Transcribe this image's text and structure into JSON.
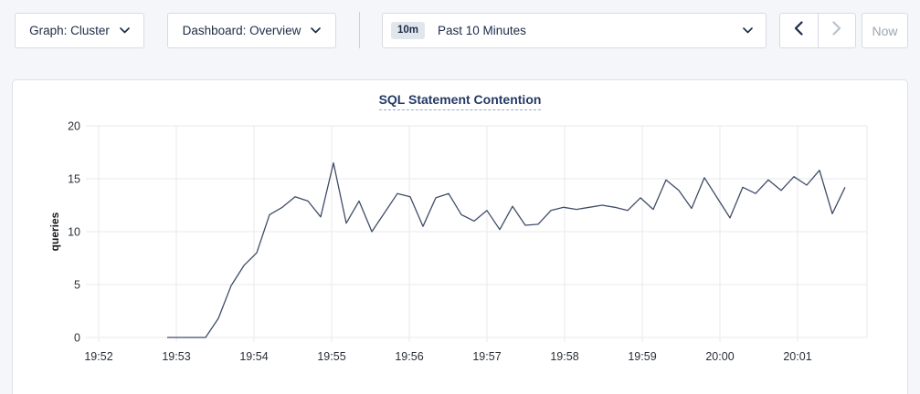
{
  "toolbar": {
    "graph_dropdown": {
      "label": "Graph: Cluster"
    },
    "dashboard_dropdown": {
      "label": "Dashboard: Overview"
    },
    "time_picker": {
      "badge": "10m",
      "label": "Past 10 Minutes"
    },
    "now_button": {
      "label": "Now"
    }
  },
  "chart": {
    "title": "SQL Statement Contention",
    "ylabel": "queries"
  },
  "chart_data": {
    "type": "line",
    "title": "SQL Statement Contention",
    "xlabel": "",
    "ylabel": "queries",
    "ylim": [
      0,
      20
    ],
    "y_ticks": [
      0,
      5,
      10,
      15,
      20
    ],
    "x_tick_labels": [
      "19:52",
      "19:53",
      "19:54",
      "19:55",
      "19:56",
      "19:57",
      "19:58",
      "19:59",
      "20:00",
      "20:01"
    ],
    "grid": true,
    "legend": "none",
    "series": [
      {
        "name": "SQL Statement Contention",
        "unit": "queries",
        "start_time": "19:52:53",
        "end_time": "20:01:43",
        "interval_seconds": 10,
        "values": [
          0,
          0,
          0,
          0,
          1.8,
          4.9,
          6.8,
          8.0,
          11.6,
          12.3,
          13.3,
          12.9,
          11.4,
          16.5,
          10.8,
          12.9,
          10.0,
          11.8,
          13.6,
          13.3,
          10.5,
          13.2,
          13.6,
          11.6,
          11.0,
          12.0,
          10.2,
          12.4,
          10.6,
          10.7,
          12.0,
          12.3,
          12.1,
          12.3,
          12.5,
          12.3,
          12.0,
          13.2,
          12.1,
          14.9,
          13.9,
          12.2,
          15.1,
          13.2,
          11.3,
          14.2,
          13.6,
          14.9,
          13.9,
          15.2,
          14.4,
          15.8,
          11.7,
          14.2
        ]
      }
    ],
    "colors": {
      "line": "#3f4c68",
      "grid": "#e9eaee",
      "tick_text": "#2b2f36"
    }
  },
  "colors": {
    "background": "#f4f6f9",
    "accent_navy": "#1c2b46",
    "title_navy": "#253a67",
    "disabled_gray": "#b9c3cd"
  }
}
